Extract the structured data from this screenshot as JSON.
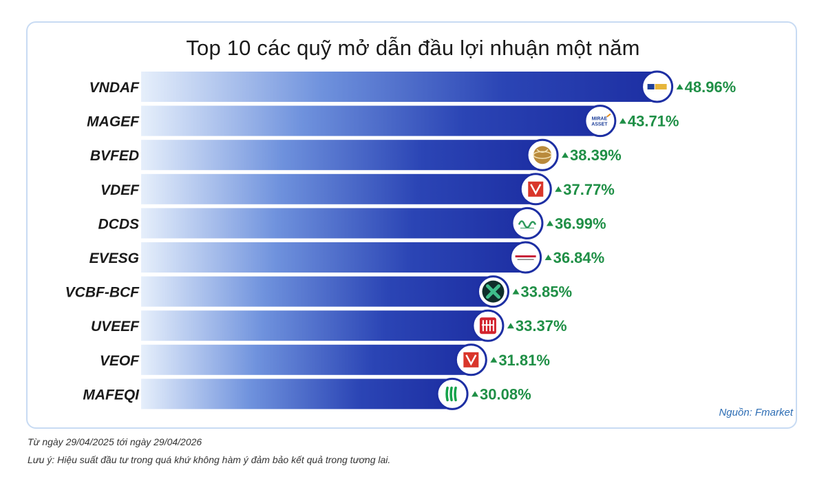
{
  "title": "Top 10 các quỹ mở dẫn đầu lợi nhuận một năm",
  "source": "Nguồn: Fmarket",
  "date_range": "Từ ngày 29/04/2025 tới ngày 29/04/2026",
  "disclaimer": "Lưu ý: Hiệu suất đầu tư trong quá khứ không hàm ý đảm bảo kết quả trong tương lai.",
  "colors": {
    "bar_dark": "#1d2fa3",
    "bar_light": "#e6effb",
    "value_green": "#1f8f46",
    "border": "#c8dbf3"
  },
  "chart_data": {
    "type": "bar",
    "orientation": "horizontal",
    "categories": [
      "VNDAF",
      "MAGEF",
      "BVFED",
      "VDEF",
      "DCDS",
      "EVESG",
      "VCBF-BCF",
      "UVEEF",
      "VEOF",
      "MAFEQI"
    ],
    "values": [
      48.96,
      43.71,
      38.39,
      37.77,
      36.99,
      36.84,
      33.85,
      33.37,
      31.81,
      30.08
    ],
    "value_labels": [
      "48.96%",
      "43.71%",
      "38.39%",
      "37.77%",
      "36.99%",
      "36.84%",
      "33.85%",
      "33.37%",
      "31.81%",
      "30.08%"
    ],
    "logo_icons": [
      "vndirect-logo-icon",
      "mirae-asset-logo-icon",
      "baoviet-globe-logo-icon",
      "dragon-capital-logo-icon",
      "dc-swirl-logo-icon",
      "eastspring-logo-icon",
      "vcbf-clover-logo-icon",
      "uob-stripes-logo-icon",
      "dragon-capital-logo-icon",
      "manulife-logo-icon"
    ]
  }
}
